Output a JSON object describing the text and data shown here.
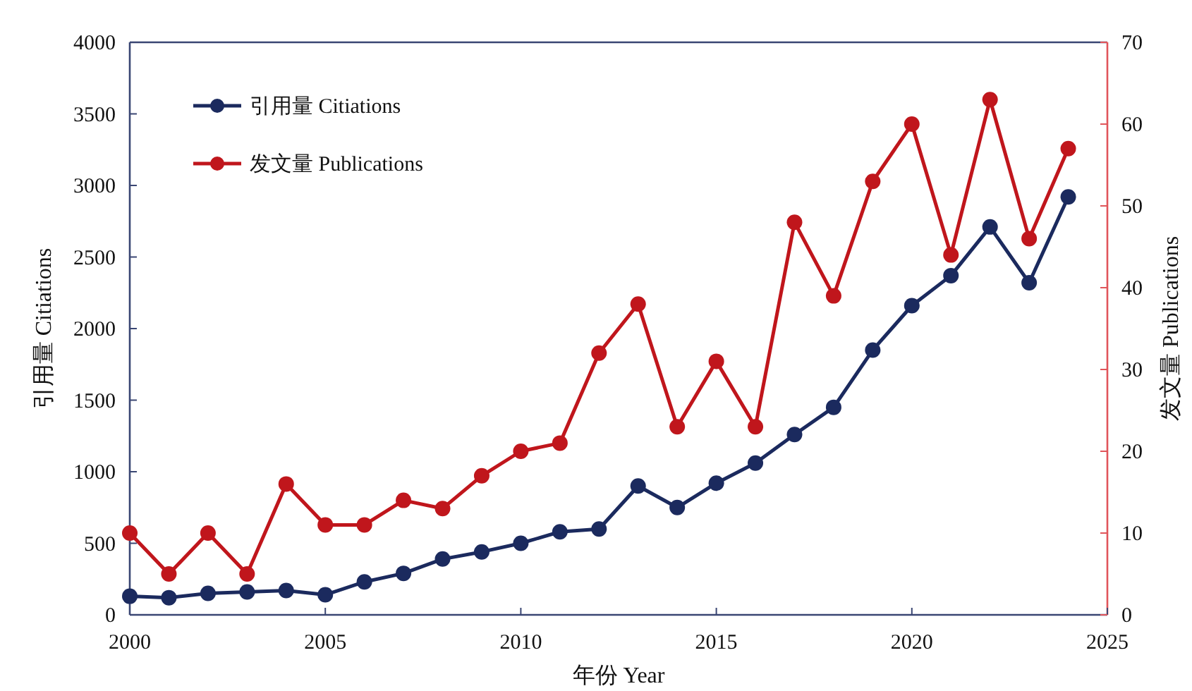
{
  "chart_data": {
    "type": "line",
    "x": [
      2000,
      2001,
      2002,
      2003,
      2004,
      2005,
      2006,
      2007,
      2008,
      2009,
      2010,
      2011,
      2012,
      2013,
      2014,
      2015,
      2016,
      2017,
      2018,
      2019,
      2020,
      2021,
      2022,
      2023,
      2024
    ],
    "series": [
      {
        "name": "引用量 Citiations",
        "color": "#1b2a5e",
        "values": [
          130,
          120,
          150,
          160,
          170,
          140,
          230,
          290,
          390,
          440,
          500,
          580,
          600,
          900,
          750,
          920,
          1060,
          1260,
          1450,
          1850,
          2160,
          2370,
          2710,
          2320,
          2920
        ]
      },
      {
        "name": "发文量 Publications",
        "color": "#c0161c",
        "axis": "y2",
        "values": [
          10,
          5,
          10,
          5,
          16,
          11,
          11,
          14,
          13,
          17,
          20,
          21,
          32,
          38,
          23,
          31,
          23,
          48,
          39,
          53,
          60,
          44,
          63,
          46,
          57
        ]
      }
    ],
    "xlabel": "年份 Year",
    "ylabel": "引用量 Citiations",
    "y2label": "发文量 Publications",
    "xlim": [
      2000,
      2025
    ],
    "xticks": [
      2000,
      2005,
      2010,
      2015,
      2020,
      2025
    ],
    "ylim": [
      0,
      4000
    ],
    "yticks": [
      0,
      500,
      1000,
      1500,
      2000,
      2500,
      3000,
      3500,
      4000
    ],
    "y2lim": [
      0,
      70
    ],
    "y2ticks": [
      0,
      10,
      20,
      30,
      40,
      50,
      60,
      70
    ],
    "marker": "circle",
    "line_style": "solid",
    "grid": false,
    "legend": "top left"
  }
}
